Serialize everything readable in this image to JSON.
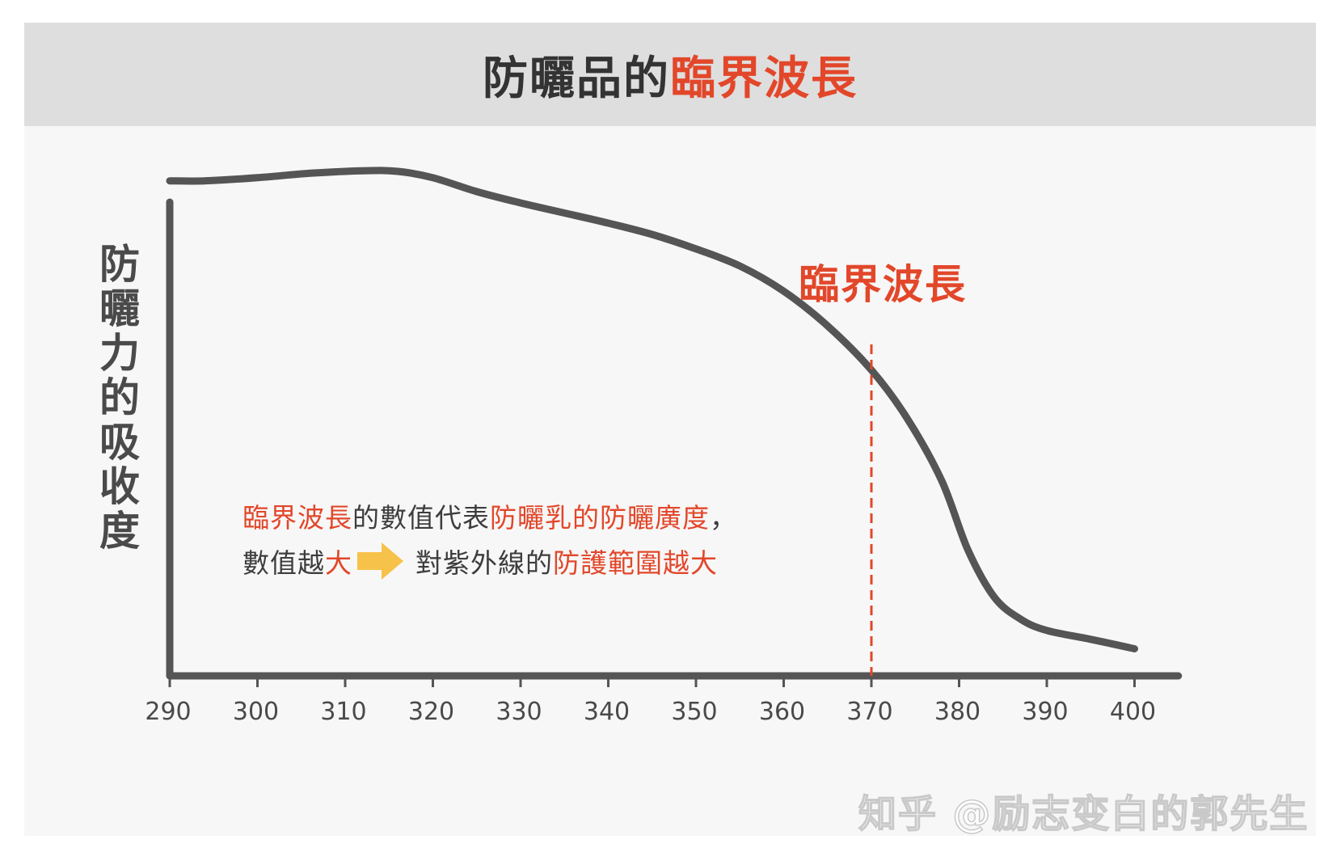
{
  "header": {
    "title_plain": "防曬品的",
    "title_highlight": "臨界波長"
  },
  "annotation": {
    "critical_label": "臨界波長",
    "line1": [
      {
        "text": "臨界波長",
        "highlight": true
      },
      {
        "text": "的數值代表",
        "highlight": false
      },
      {
        "text": "防曬乳的防曬廣度",
        "highlight": true
      },
      {
        "text": "，",
        "highlight": false
      }
    ],
    "line2_before": [
      {
        "text": "數值越",
        "highlight": false
      },
      {
        "text": "大",
        "highlight": true
      }
    ],
    "line2_after": [
      {
        "text": "對紫外線的",
        "highlight": false
      },
      {
        "text": "防護範圍越大",
        "highlight": true
      }
    ],
    "arrow_icon": "right-arrow-icon"
  },
  "watermark": "知乎 @励志变白的郭先生",
  "colors": {
    "accent": "#e2472a",
    "curve": "#555555",
    "arrow": "#f7c24a",
    "header_bg": "#dedede",
    "panel_bg": "#f7f7f7"
  },
  "chart_data": {
    "type": "line",
    "title": "防曬品的臨界波長",
    "ylabel": "防曬力的吸收度",
    "xlabel": "",
    "x_ticks": [
      290,
      300,
      310,
      320,
      330,
      340,
      350,
      360,
      370,
      380,
      390,
      400
    ],
    "xlim": [
      290,
      405
    ],
    "ylim": [
      0,
      1
    ],
    "y_ticks_shown": false,
    "grid": false,
    "critical_wavelength": 370,
    "series": [
      {
        "x": [
          290,
          294,
          300,
          306,
          312,
          316,
          320,
          325,
          330,
          335,
          340,
          345,
          350,
          355,
          360,
          365,
          370,
          374,
          378,
          381,
          384,
          387,
          390,
          395,
          400
        ],
        "y": [
          0.785,
          0.785,
          0.79,
          0.797,
          0.801,
          0.8,
          0.79,
          0.768,
          0.75,
          0.734,
          0.718,
          0.7,
          0.677,
          0.65,
          0.61,
          0.555,
          0.485,
          0.41,
          0.31,
          0.2,
          0.125,
          0.09,
          0.072,
          0.058,
          0.043
        ]
      }
    ]
  }
}
